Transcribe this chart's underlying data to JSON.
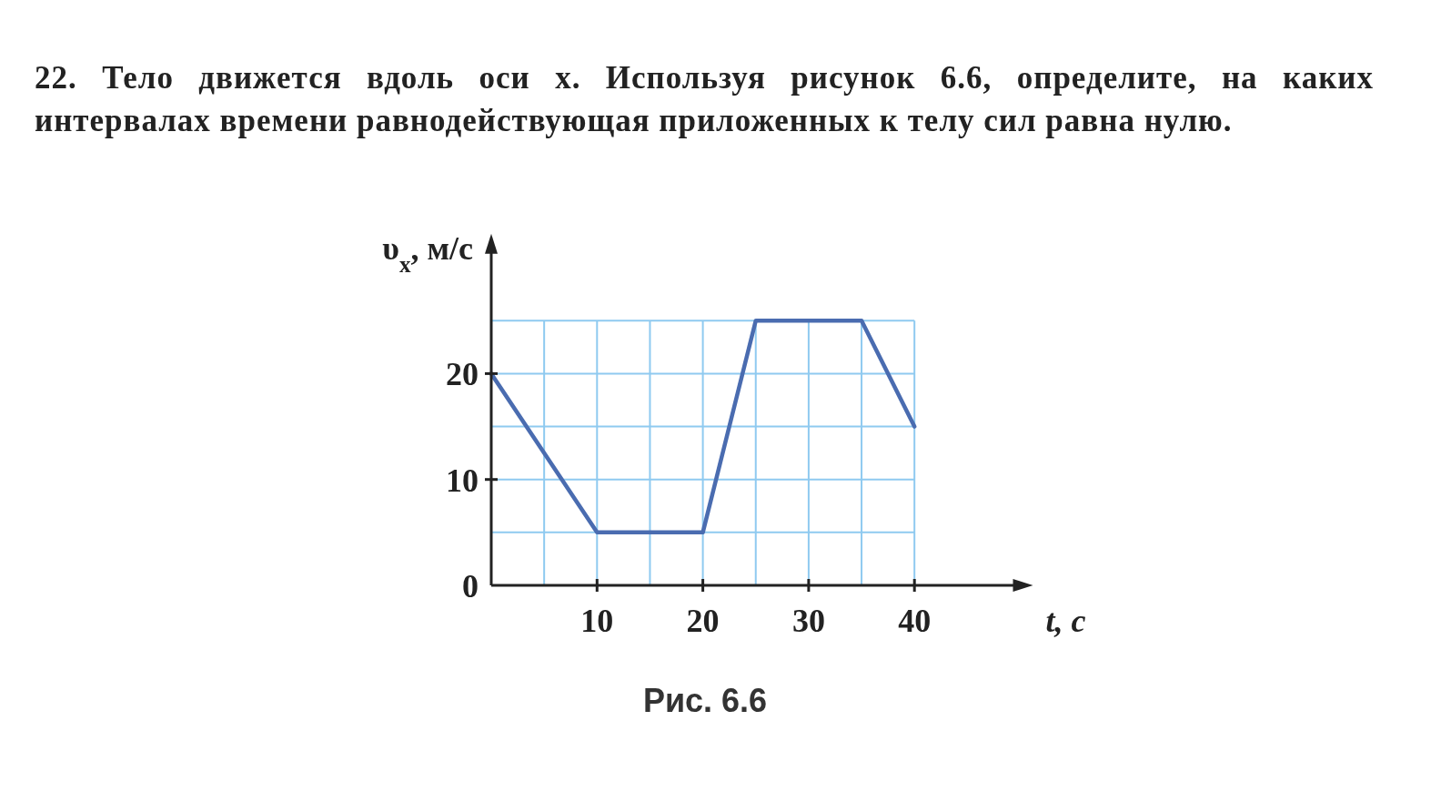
{
  "chart_data": {
    "type": "line",
    "title": "22. Тело движется вдоль оси x. Используя рисунок 6.6, определите, на каких интервалах времени равнодействующая приложенных к телу сил равна нулю.",
    "xlabel": "t, с",
    "ylabel": "υ$_{x}$, м/с",
    "annotations": [
      "Рис. 6.6"
    ],
    "x": [
      0,
      10,
      20,
      25,
      35,
      40
    ],
    "series": [
      {
        "color": "#4a6cb0",
        "values": [
          20,
          5,
          5,
          25,
          25,
          15
        ]
      }
    ],
    "xlim": [
      0,
      50
    ],
    "ylim": [
      0,
      32
    ],
    "xticks": [
      {
        "value": 5,
        "label": null
      },
      10,
      {
        "value": 15,
        "label": null
      },
      20,
      {
        "value": 25,
        "label": null
      },
      30,
      {
        "value": 35,
        "label": null
      },
      40
    ],
    "yticks": [
      0,
      {
        "value": 5,
        "label": null
      },
      10,
      {
        "value": 15,
        "label": null
      },
      20,
      {
        "value": 25,
        "label": null
      }
    ],
    "grid": true,
    "marker": "none",
    "line_style": "solid"
  }
}
